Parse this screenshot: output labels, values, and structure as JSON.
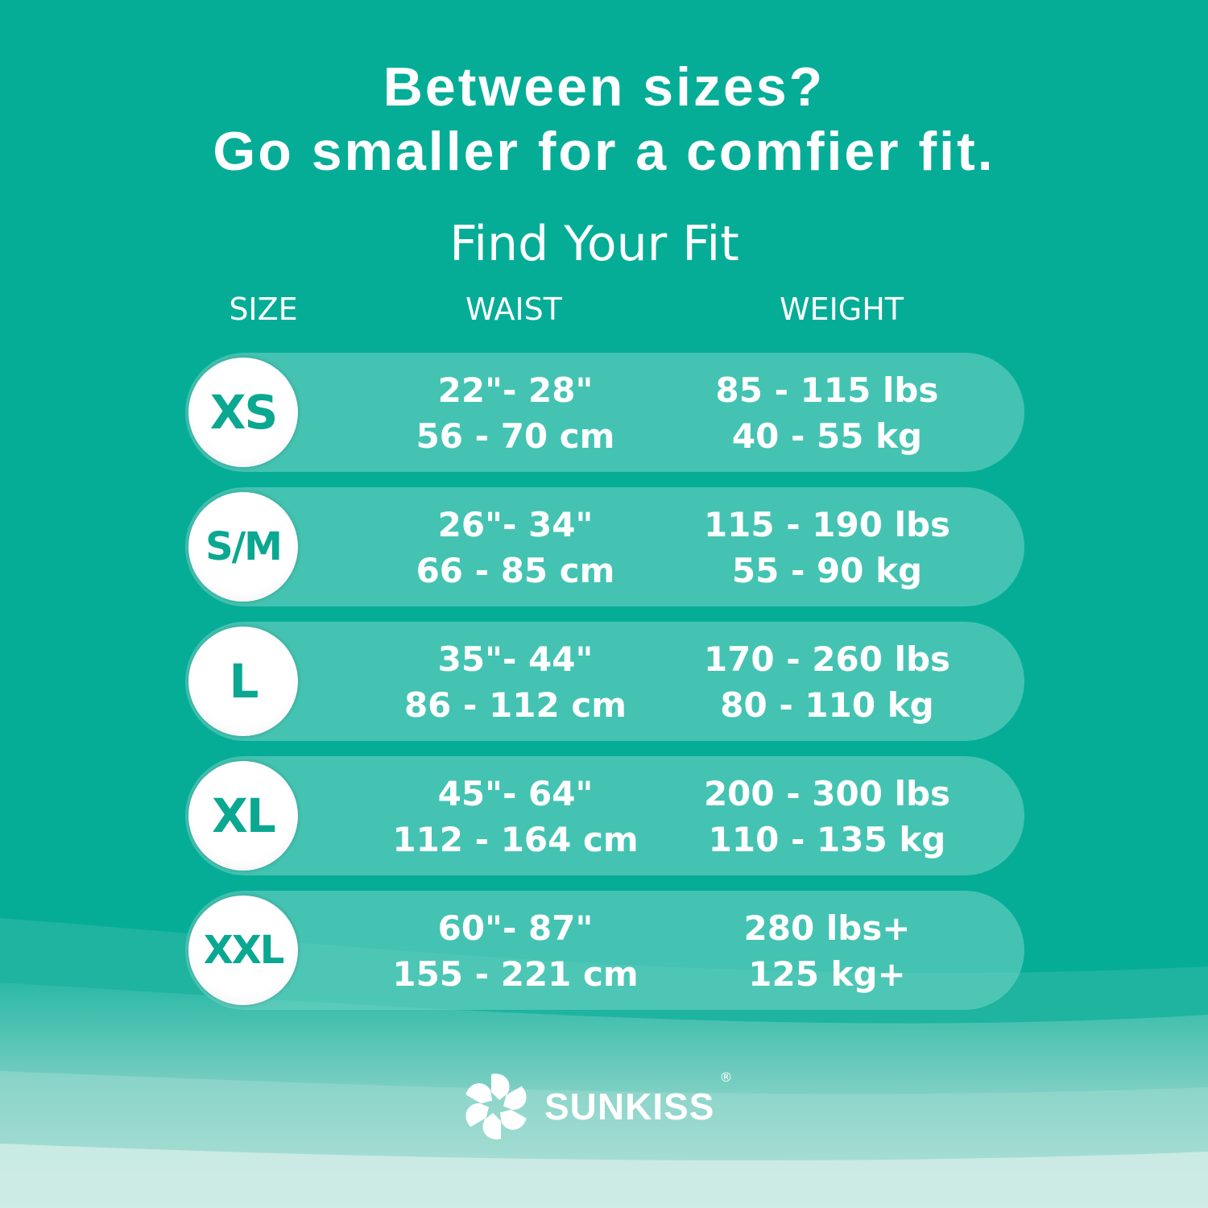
{
  "headline": {
    "line1": "Between sizes?",
    "line2": "Go smaller for a comfier fit."
  },
  "subtitle": "Find Your Fit",
  "columns": {
    "size": "SIZE",
    "waist": "WAIST",
    "weight": "WEIGHT"
  },
  "rows": [
    {
      "size": "XS",
      "waist_in": "22\"- 28\"",
      "waist_cm": "56 - 70 cm",
      "weight_lbs": "85 - 115 lbs",
      "weight_kg": "40 - 55 kg"
    },
    {
      "size": "S/M",
      "waist_in": "26\"- 34\"",
      "waist_cm": "66 - 85 cm",
      "weight_lbs": "115 - 190 lbs",
      "weight_kg": "55 - 90 kg"
    },
    {
      "size": "L",
      "waist_in": "35\"- 44\"",
      "waist_cm": "86 - 112 cm",
      "weight_lbs": "170 - 260 lbs",
      "weight_kg": "80 - 110 kg"
    },
    {
      "size": "XL",
      "waist_in": "45\"- 64\"",
      "waist_cm": "112 - 164 cm",
      "weight_lbs": "200 - 300 lbs",
      "weight_kg": "110 - 135 kg"
    },
    {
      "size": "XXL",
      "waist_in": "60\"- 87\"",
      "waist_cm": "155 - 221 cm",
      "weight_lbs": "280 lbs+",
      "weight_kg": "125 kg+"
    }
  ],
  "brand": {
    "name": "SUNKISS",
    "reg": "®",
    "logo_icon": "flower-petal-star-icon"
  },
  "colors": {
    "background": "#05ad97",
    "accent": "#0aa891",
    "row": "#45c0b0"
  }
}
